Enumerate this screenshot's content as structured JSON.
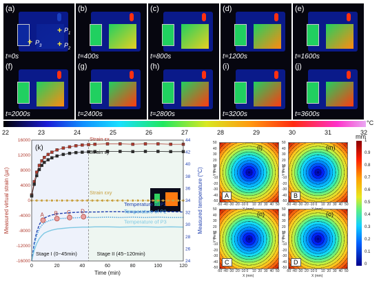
{
  "thermal_panels": [
    {
      "label": "(a)",
      "time": "t=0s"
    },
    {
      "label": "(b)",
      "time": "t=400s"
    },
    {
      "label": "(c)",
      "time": "t=800s"
    },
    {
      "label": "(d)",
      "time": "t=1200s"
    },
    {
      "label": "(e)",
      "time": "t=1600s"
    },
    {
      "label": "(f)",
      "time": "t=2000s"
    },
    {
      "label": "(g)",
      "time": "t=2400s"
    },
    {
      "label": "(h)",
      "time": "t=2800s"
    },
    {
      "label": "(i)",
      "time": "t=3200s"
    },
    {
      "label": "(j)",
      "time": "t=3600s"
    }
  ],
  "markers": {
    "p1": "P",
    "p1_sub": "1",
    "p2": "P",
    "p2_sub": "2",
    "p3": "P",
    "p3_sub": "3"
  },
  "colorbar": {
    "ticks": [
      "22",
      "23",
      "24",
      "25",
      "26",
      "27",
      "28",
      "29",
      "30",
      "31",
      "32"
    ],
    "unit": "°C"
  },
  "contour_panels": [
    {
      "label": "(l)",
      "point": "A"
    },
    {
      "label": "(m)",
      "point": "B"
    },
    {
      "label": "(n)",
      "point": "C"
    },
    {
      "label": "(o)",
      "point": "D"
    }
  ],
  "contour_axes": {
    "ylabel": "Y (mm)",
    "xlabel": "X (mm)",
    "ticks": [
      "-50",
      "-40",
      "-30",
      "-20",
      "-10",
      "0",
      "10",
      "20",
      "30",
      "40",
      "50"
    ]
  },
  "mm_scale": {
    "unit": "mm",
    "ticks": [
      "1",
      "0.9",
      "0.8",
      "0.7",
      "0.6",
      "0.5",
      "0.4",
      "0.3",
      "0.2",
      "0.1",
      "0"
    ]
  },
  "chart_data": {
    "type": "line",
    "panel_label": "(k)",
    "xlabel": "Time (min)",
    "ylabel_left": "Measured virtual strain (με)",
    "ylabel_right": "Measured temperature (°C)",
    "xlim": [
      0,
      120
    ],
    "ylim_left": [
      -16000,
      16000
    ],
    "ylim_right": [
      24,
      44
    ],
    "x_ticks": [
      "0",
      "20",
      "40",
      "60",
      "80",
      "100",
      "120"
    ],
    "left_ticks": [
      "-16000",
      "-12000",
      "-8000",
      "-4000",
      "0",
      "4000",
      "8000",
      "12000",
      "16000"
    ],
    "right_ticks": [
      "24",
      "26",
      "28",
      "30",
      "32",
      "34",
      "36",
      "38",
      "40",
      "42",
      "44"
    ],
    "stage_labels": [
      "Stage I (0~45min)",
      "Stage II (45~120min)"
    ],
    "stage_boundary": 45,
    "points": [
      {
        "name": "A",
        "x": 9,
        "y": -5200
      },
      {
        "name": "B",
        "x": 20,
        "y": -4800
      },
      {
        "name": "C",
        "x": 30,
        "y": -4500
      },
      {
        "name": "D",
        "x": 41,
        "y": -4300
      }
    ],
    "series": [
      {
        "name": "Strain εx",
        "axis": "left",
        "color": "#b03a2e",
        "x": [
          0,
          2,
          4,
          6,
          8,
          10,
          13,
          16,
          20,
          25,
          30,
          35,
          40,
          45,
          50,
          60,
          70,
          80,
          90,
          100,
          110,
          120
        ],
        "y": [
          1500,
          5000,
          7500,
          9300,
          10500,
          11400,
          12200,
          12800,
          13400,
          13900,
          14200,
          14500,
          14700,
          14800,
          14900,
          15000,
          15000,
          14900,
          15000,
          15000,
          14900,
          14900
        ]
      },
      {
        "name": "Strain εy",
        "axis": "left",
        "color": "#222222",
        "x": [
          0,
          2,
          4,
          6,
          8,
          10,
          13,
          16,
          20,
          25,
          30,
          35,
          40,
          45,
          50,
          60,
          70,
          80,
          90,
          100,
          110,
          120
        ],
        "y": [
          1200,
          4300,
          6600,
          8200,
          9300,
          10100,
          10800,
          11300,
          11800,
          12200,
          12500,
          12700,
          12800,
          12900,
          12950,
          13000,
          13000,
          12950,
          13000,
          13000,
          12950,
          12950
        ]
      },
      {
        "name": "Strain εxy",
        "axis": "left",
        "color": "#c8a040",
        "x": [
          0,
          20,
          40,
          60,
          80,
          100,
          120
        ],
        "y": [
          0,
          0,
          0,
          0,
          0,
          0,
          0
        ]
      },
      {
        "name": "Temperature of P1",
        "axis": "right",
        "color": "#1f3fae",
        "x": [
          0,
          2,
          4,
          6,
          8,
          10,
          13,
          16,
          20,
          25,
          30,
          35,
          40,
          45,
          50,
          60,
          70,
          80,
          90,
          100,
          110,
          120
        ],
        "y": [
          24,
          27,
          28.8,
          30,
          30.7,
          31.1,
          31.4,
          31.6,
          31.8,
          31.9,
          32,
          32.05,
          32.1,
          32.1,
          32.1,
          32.15,
          32.15,
          32.1,
          32.15,
          32.15,
          32.15,
          32.1
        ]
      },
      {
        "name": "Temperature of P2",
        "axis": "right",
        "color": "#3a9ad9",
        "x": [
          0,
          2,
          4,
          6,
          8,
          10,
          13,
          16,
          20,
          25,
          30,
          35,
          40,
          45,
          50,
          60,
          70,
          80,
          90,
          100,
          110,
          120
        ],
        "y": [
          24,
          26.6,
          28.2,
          29.3,
          29.9,
          30.3,
          30.6,
          30.8,
          30.95,
          31.05,
          31.1,
          31.15,
          31.2,
          31.2,
          31.2,
          31.25,
          31.2,
          31.25,
          31.2,
          31.25,
          31.2,
          31.2
        ]
      },
      {
        "name": "Temperature of P3",
        "axis": "right",
        "color": "#7ec8e3",
        "x": [
          0,
          2,
          4,
          6,
          8,
          10,
          13,
          16,
          20,
          25,
          30,
          35,
          40,
          45,
          50,
          60,
          70,
          80,
          90,
          100,
          110,
          120
        ],
        "y": [
          24,
          25.8,
          26.9,
          27.7,
          28.2,
          28.6,
          28.9,
          29.1,
          29.3,
          29.4,
          29.5,
          29.55,
          29.6,
          29.6,
          29.65,
          29.65,
          29.6,
          29.65,
          29.65,
          29.6,
          29.65,
          29.6
        ]
      }
    ]
  }
}
